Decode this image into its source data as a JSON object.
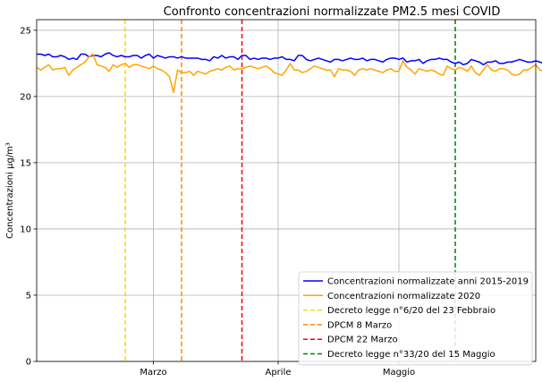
{
  "chart_data": {
    "type": "line",
    "title": "Confronto concentrazioni normalizzate PM2.5 mesi COVID",
    "xlabel": "",
    "ylabel": "Concentrazioni µg/m³",
    "x_start": "2020-02-01",
    "x_end": "2020-06-04",
    "ylim": [
      0,
      25.8
    ],
    "yticks": [
      0,
      5,
      10,
      15,
      20,
      25
    ],
    "xticks": [
      {
        "date": "2020-03-01",
        "label": "Marzo"
      },
      {
        "date": "2020-04-01",
        "label": "Aprile"
      },
      {
        "date": "2020-05-01",
        "label": "Maggio"
      }
    ],
    "grid": true,
    "legend_position": "lower-right",
    "series": [
      {
        "name": "Concentrazioni normalizzate anni 2015-2019",
        "color": "#0000ff",
        "start": "2020-02-01",
        "values": [
          23.2,
          23.2,
          23.1,
          23.2,
          23.0,
          23.0,
          23.1,
          23.0,
          22.8,
          22.9,
          22.8,
          23.2,
          23.2,
          23.0,
          23.1,
          23.1,
          23.0,
          23.2,
          23.3,
          23.1,
          23.0,
          23.1,
          23.0,
          23.0,
          23.1,
          23.1,
          22.9,
          23.1,
          23.2,
          22.9,
          23.1,
          23.0,
          22.9,
          23.0,
          23.0,
          22.9,
          23.0,
          22.9,
          22.9,
          22.9,
          22.9,
          22.8,
          22.8,
          22.7,
          23.0,
          22.9,
          23.1,
          22.9,
          23.0,
          23.0,
          22.8,
          23.1,
          23.1,
          22.8,
          22.9,
          22.8,
          22.9,
          22.9,
          22.8,
          22.9,
          22.9,
          23.0,
          22.8,
          22.8,
          22.7,
          23.1,
          23.1,
          22.8,
          22.7,
          22.8,
          22.9,
          22.8,
          22.7,
          22.6,
          22.8,
          22.8,
          22.7,
          22.8,
          22.9,
          22.8,
          22.8,
          22.9,
          22.7,
          22.8,
          22.8,
          22.7,
          22.6,
          22.8,
          22.9,
          22.9,
          22.8,
          22.9,
          22.6,
          22.7,
          22.7,
          22.8,
          22.5,
          22.7,
          22.8,
          22.8,
          22.9,
          22.8,
          22.8,
          22.6,
          22.5,
          22.6,
          22.4,
          22.5,
          22.8,
          22.7,
          22.6,
          22.4,
          22.6,
          22.6,
          22.7,
          22.5,
          22.5,
          22.6,
          22.6,
          22.7,
          22.8,
          22.7,
          22.6,
          22.6,
          22.7,
          22.6,
          22.5,
          22.8,
          22.9,
          22.9,
          22.7,
          22.6,
          23.3
        ]
      },
      {
        "name": "Concentrazioni normalizzate 2020",
        "color": "#ffa500",
        "start": "2020-02-01",
        "values": [
          22.2,
          22.0,
          22.2,
          22.4,
          22.0,
          22.1,
          22.1,
          22.2,
          21.6,
          22.0,
          22.2,
          22.4,
          22.6,
          23.0,
          23.2,
          22.4,
          22.3,
          22.2,
          21.9,
          22.4,
          22.2,
          22.4,
          22.5,
          22.2,
          22.4,
          22.4,
          22.3,
          22.2,
          22.1,
          22.3,
          22.1,
          22.0,
          21.8,
          21.5,
          20.3,
          22.0,
          21.8,
          21.8,
          21.9,
          21.6,
          21.9,
          21.8,
          21.7,
          21.9,
          22.0,
          22.1,
          22.0,
          22.2,
          22.3,
          22.0,
          22.1,
          22.1,
          22.2,
          22.3,
          22.2,
          22.1,
          22.2,
          22.3,
          22.1,
          21.8,
          21.7,
          21.6,
          22.0,
          22.5,
          22.0,
          22.0,
          21.8,
          21.9,
          22.1,
          22.3,
          22.2,
          22.1,
          22.0,
          22.0,
          21.5,
          22.1,
          22.0,
          22.0,
          21.9,
          21.6,
          22.0,
          22.1,
          22.0,
          22.1,
          22.0,
          21.9,
          21.8,
          22.0,
          22.1,
          21.9,
          21.9,
          22.7,
          22.2,
          22.0,
          21.7,
          22.1,
          22.0,
          21.9,
          22.0,
          21.9,
          21.7,
          21.6,
          22.3,
          22.1,
          22.0,
          22.2,
          22.1,
          21.9,
          22.3,
          21.8,
          21.6,
          22.0,
          22.4,
          22.0,
          21.9,
          22.1,
          22.1,
          22.0,
          21.7,
          21.6,
          21.7,
          22.0,
          22.0,
          22.2,
          22.4,
          22.0,
          21.9,
          21.6,
          21.9,
          22.0,
          22.5,
          22.0,
          21.7
        ]
      }
    ],
    "events": [
      {
        "name": "Decreto legge n°6/20 del 23 Febbraio",
        "date": "2020-02-23",
        "color": "#ffd700"
      },
      {
        "name": "DPCM 8 Marzo",
        "date": "2020-03-08",
        "color": "#ff8c00"
      },
      {
        "name": "DPCM 22 Marzo",
        "date": "2020-03-23",
        "color": "#ff0000"
      },
      {
        "name": "Decreto legge n°33/20 del 15 Maggio",
        "date": "2020-05-15",
        "color": "#008000"
      }
    ]
  }
}
